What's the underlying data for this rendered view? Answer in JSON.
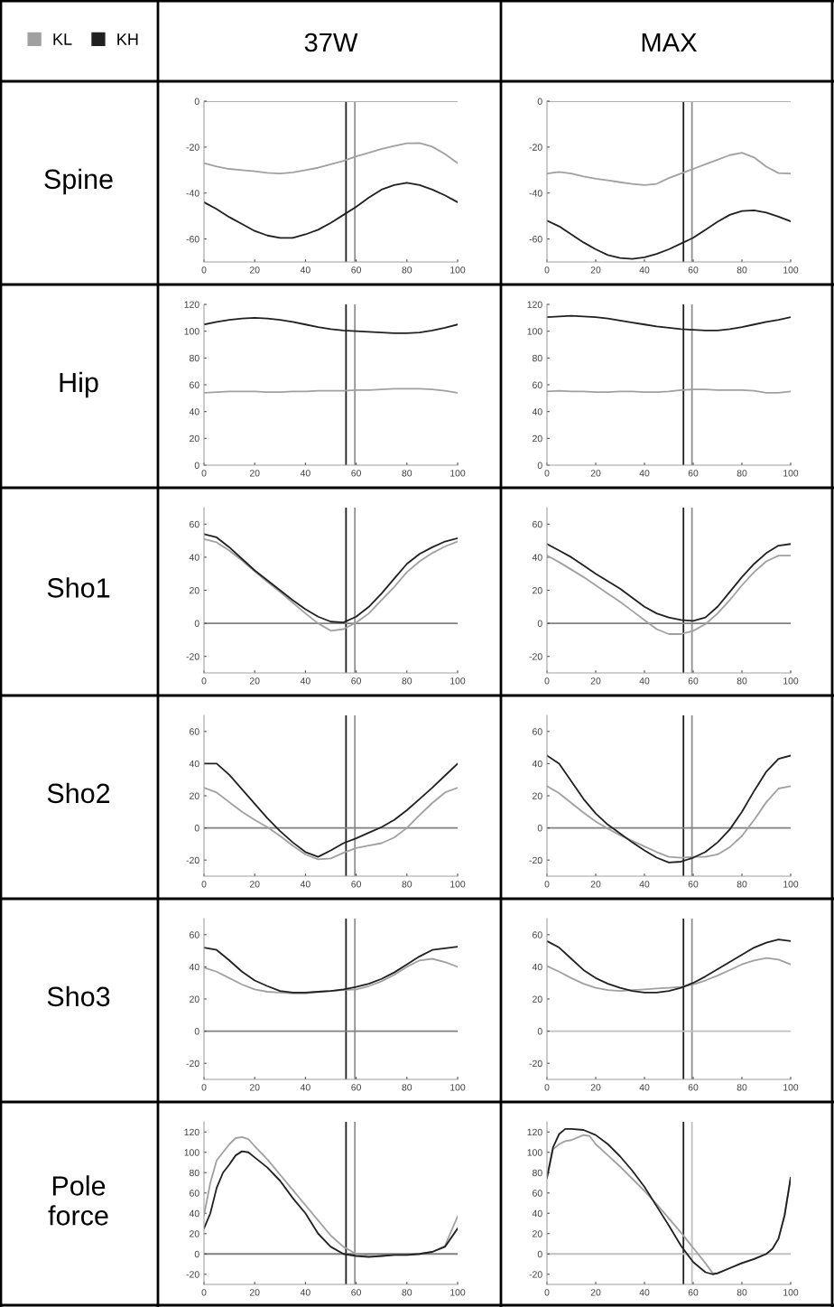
{
  "chart_data": [
    {
      "type": "line",
      "title": "37W",
      "ylabel": "Spine",
      "legend": "top left",
      "xlim": [
        0,
        100
      ],
      "xticks": [
        0,
        20,
        40,
        60,
        80,
        100
      ],
      "ylim": [
        -70,
        0
      ],
      "yticks": [
        -60,
        -40,
        -20,
        0
      ],
      "x": [
        0,
        5,
        10,
        15,
        20,
        25,
        30,
        35,
        40,
        45,
        50,
        55,
        60,
        65,
        70,
        75,
        80,
        85,
        90,
        95,
        100
      ],
      "series": [
        {
          "name": "KL",
          "color": "#a0a0a0",
          "values": [
            -27,
            -28.5,
            -29.5,
            -30,
            -30.5,
            -31.2,
            -31.5,
            -31,
            -30,
            -29,
            -27.5,
            -26,
            -24,
            -22.5,
            -20.8,
            -19.5,
            -18.3,
            -18.2,
            -19.8,
            -23,
            -27
          ]
        },
        {
          "name": "KH",
          "color": "#202020",
          "values": [
            -44,
            -47,
            -50.5,
            -53.5,
            -56.5,
            -58.5,
            -59.5,
            -59.5,
            -58,
            -56,
            -53,
            -49.5,
            -46,
            -42,
            -38.5,
            -36.5,
            -35.5,
            -36.5,
            -38.5,
            -41,
            -44
          ]
        }
      ],
      "ref_lines": [
        {
          "axis": "x",
          "value": 56,
          "color": "#202020"
        },
        {
          "axis": "x",
          "value": 59.5,
          "color": "#909090"
        },
        {
          "axis": "y",
          "value": 0,
          "color": "#b0b0b0"
        }
      ]
    },
    {
      "type": "line",
      "title": "MAX",
      "xlim": [
        0,
        100
      ],
      "xticks": [
        0,
        20,
        40,
        60,
        80,
        100
      ],
      "ylim": [
        -70,
        0
      ],
      "yticks": [
        -60,
        -40,
        -20,
        0
      ],
      "x": [
        0,
        5,
        10,
        15,
        20,
        25,
        30,
        35,
        40,
        45,
        50,
        55,
        60,
        65,
        70,
        75,
        80,
        85,
        90,
        95,
        100
      ],
      "series": [
        {
          "color": "#a0a0a0",
          "values": [
            -31.5,
            -30.8,
            -31.5,
            -32.8,
            -33.8,
            -34.5,
            -35.3,
            -36,
            -36.5,
            -36,
            -33.5,
            -31.5,
            -29.5,
            -27.5,
            -25.5,
            -23.5,
            -22.5,
            -24.5,
            -28.5,
            -31.3,
            -31.5
          ]
        },
        {
          "color": "#202020",
          "values": [
            -52,
            -54.5,
            -58,
            -61.5,
            -64.5,
            -67,
            -68.3,
            -68.7,
            -68,
            -66.5,
            -64.5,
            -62,
            -59.5,
            -56,
            -52.5,
            -49.5,
            -47.8,
            -47.5,
            -48.5,
            -50.3,
            -52.3
          ]
        }
      ],
      "ref_lines": [
        {
          "axis": "x",
          "value": 56,
          "color": "#202020"
        },
        {
          "axis": "x",
          "value": 59.5,
          "color": "#909090"
        },
        {
          "axis": "y",
          "value": 0,
          "color": "#b0b0b0"
        }
      ]
    },
    {
      "type": "line",
      "ylabel": "Hip",
      "xlim": [
        0,
        100
      ],
      "xticks": [
        0,
        20,
        40,
        60,
        80,
        100
      ],
      "ylim": [
        0,
        120
      ],
      "yticks": [
        0,
        20,
        40,
        60,
        80,
        100,
        120
      ],
      "x": [
        0,
        5,
        10,
        15,
        20,
        25,
        30,
        35,
        40,
        45,
        50,
        55,
        60,
        65,
        70,
        75,
        80,
        85,
        90,
        95,
        100
      ],
      "series": [
        {
          "color": "#a0a0a0",
          "values": [
            54,
            54.5,
            55,
            55,
            55,
            54.5,
            54.5,
            55,
            55,
            55.5,
            55.5,
            55.5,
            56,
            56,
            56.5,
            57,
            57,
            57,
            56.5,
            55.5,
            54
          ]
        },
        {
          "color": "#202020",
          "values": [
            105,
            107,
            108.5,
            109.5,
            110,
            109.5,
            108.5,
            107,
            105,
            103,
            101.5,
            100.5,
            100,
            99.5,
            99,
            98.5,
            98.5,
            99,
            100.5,
            102.5,
            105
          ]
        }
      ],
      "ref_lines": [
        {
          "axis": "x",
          "value": 56,
          "color": "#202020"
        },
        {
          "axis": "x",
          "value": 59.5,
          "color": "#909090"
        }
      ]
    },
    {
      "type": "line",
      "xlim": [
        0,
        100
      ],
      "xticks": [
        0,
        20,
        40,
        60,
        80,
        100
      ],
      "ylim": [
        0,
        120
      ],
      "yticks": [
        0,
        20,
        40,
        60,
        80,
        100,
        120
      ],
      "x": [
        0,
        5,
        10,
        15,
        20,
        25,
        30,
        35,
        40,
        45,
        50,
        55,
        60,
        65,
        70,
        75,
        80,
        85,
        90,
        95,
        100
      ],
      "series": [
        {
          "color": "#a0a0a0",
          "values": [
            55,
            55.5,
            55,
            55,
            54.5,
            54.5,
            55,
            55,
            54.5,
            54.5,
            55,
            56,
            56.5,
            56.5,
            56,
            56,
            56,
            55.5,
            54,
            54,
            55
          ]
        },
        {
          "color": "#202020",
          "values": [
            110.5,
            111,
            111.5,
            111,
            110.5,
            109.5,
            108,
            106.5,
            105,
            103.5,
            102.5,
            101.5,
            101,
            100.5,
            100.5,
            101.5,
            103,
            105,
            107,
            108.5,
            110.5
          ]
        }
      ],
      "ref_lines": [
        {
          "axis": "x",
          "value": 56,
          "color": "#202020"
        },
        {
          "axis": "x",
          "value": 59.5,
          "color": "#909090"
        }
      ]
    },
    {
      "type": "line",
      "ylabel": "Sho1",
      "xlim": [
        0,
        100
      ],
      "xticks": [
        0,
        20,
        40,
        60,
        80,
        100
      ],
      "ylim": [
        -30,
        70
      ],
      "yticks": [
        -20,
        0,
        20,
        40,
        60
      ],
      "x": [
        0,
        5,
        10,
        15,
        20,
        25,
        30,
        35,
        40,
        45,
        50,
        55,
        60,
        65,
        70,
        75,
        80,
        85,
        90,
        95,
        100
      ],
      "series": [
        {
          "color": "#a0a0a0",
          "values": [
            51,
            49,
            44,
            38,
            31.5,
            25,
            19,
            12.5,
            6,
            0,
            -4.5,
            -3.5,
            0.5,
            6,
            14,
            22,
            31,
            37.5,
            42.5,
            46.5,
            49.5
          ]
        },
        {
          "color": "#202020",
          "values": [
            54,
            52,
            46,
            39,
            32,
            26,
            20,
            14,
            8.5,
            4,
            1,
            0.5,
            4,
            10,
            18,
            27,
            36,
            42,
            46,
            49.5,
            51.5
          ]
        }
      ],
      "ref_lines": [
        {
          "axis": "x",
          "value": 56,
          "color": "#202020"
        },
        {
          "axis": "x",
          "value": 59.5,
          "color": "#909090"
        },
        {
          "axis": "y",
          "value": 0,
          "color": "#808080"
        }
      ]
    },
    {
      "type": "line",
      "xlim": [
        0,
        100
      ],
      "xticks": [
        0,
        20,
        40,
        60,
        80,
        100
      ],
      "ylim": [
        -30,
        70
      ],
      "yticks": [
        -20,
        0,
        20,
        40,
        60
      ],
      "x": [
        0,
        5,
        10,
        15,
        20,
        25,
        30,
        35,
        40,
        45,
        50,
        55,
        60,
        65,
        70,
        75,
        80,
        85,
        90,
        95,
        100
      ],
      "series": [
        {
          "color": "#a0a0a0",
          "values": [
            41,
            37,
            32.5,
            28,
            23,
            18,
            13,
            7.5,
            2,
            -3.5,
            -6.5,
            -6.5,
            -4.5,
            -0.5,
            6,
            14,
            23,
            31,
            37.5,
            41,
            41
          ]
        },
        {
          "color": "#202020",
          "values": [
            48,
            44,
            40,
            35,
            30,
            25.5,
            21,
            15.5,
            10,
            6,
            3.5,
            2,
            1.5,
            3.5,
            10,
            19,
            28,
            36,
            42.5,
            47,
            48
          ]
        }
      ],
      "ref_lines": [
        {
          "axis": "x",
          "value": 56,
          "color": "#202020"
        },
        {
          "axis": "x",
          "value": 59.5,
          "color": "#909090"
        },
        {
          "axis": "y",
          "value": 0,
          "color": "#808080"
        }
      ]
    },
    {
      "type": "line",
      "ylabel": "Sho2",
      "xlim": [
        0,
        100
      ],
      "xticks": [
        0,
        20,
        40,
        60,
        80,
        100
      ],
      "ylim": [
        -30,
        70
      ],
      "yticks": [
        -20,
        0,
        20,
        40,
        60
      ],
      "x": [
        0,
        5,
        10,
        15,
        20,
        25,
        30,
        35,
        40,
        45,
        50,
        55,
        60,
        65,
        70,
        75,
        80,
        85,
        90,
        95,
        100
      ],
      "series": [
        {
          "color": "#a0a0a0",
          "values": [
            25,
            22,
            16,
            10,
            5,
            0.5,
            -5,
            -11,
            -16.5,
            -19.5,
            -19,
            -15.5,
            -12.5,
            -11,
            -9.5,
            -6,
            0,
            8,
            15.5,
            22,
            25
          ]
        },
        {
          "color": "#202020",
          "values": [
            40,
            40,
            33,
            24,
            15,
            6,
            -2,
            -9,
            -15,
            -18,
            -14,
            -9.5,
            -6.5,
            -3,
            0.5,
            5,
            11,
            18,
            25,
            32.5,
            40
          ]
        }
      ],
      "ref_lines": [
        {
          "axis": "x",
          "value": 56,
          "color": "#202020"
        },
        {
          "axis": "x",
          "value": 59.5,
          "color": "#909090"
        },
        {
          "axis": "y",
          "value": 0,
          "color": "#808080"
        }
      ]
    },
    {
      "type": "line",
      "xlim": [
        0,
        100
      ],
      "xticks": [
        0,
        20,
        40,
        60,
        80,
        100
      ],
      "ylim": [
        -30,
        70
      ],
      "yticks": [
        -20,
        0,
        20,
        40,
        60
      ],
      "x": [
        0,
        5,
        10,
        15,
        20,
        25,
        30,
        35,
        40,
        45,
        50,
        55,
        60,
        65,
        70,
        75,
        80,
        85,
        90,
        95,
        100
      ],
      "series": [
        {
          "color": "#a0a0a0",
          "values": [
            26,
            21.5,
            15.5,
            9.5,
            4,
            -0.5,
            -4.5,
            -8,
            -11.5,
            -15,
            -18,
            -18.5,
            -18,
            -18,
            -16.5,
            -12,
            -5,
            5,
            16,
            24.5,
            26
          ]
        },
        {
          "color": "#202020",
          "values": [
            45,
            40,
            29,
            18,
            9,
            2,
            -3.5,
            -9,
            -14,
            -18.5,
            -21.5,
            -21,
            -18.5,
            -15,
            -9,
            -1,
            10,
            23,
            35,
            43,
            45
          ]
        }
      ],
      "ref_lines": [
        {
          "axis": "x",
          "value": 56,
          "color": "#202020"
        },
        {
          "axis": "x",
          "value": 59.5,
          "color": "#909090"
        },
        {
          "axis": "y",
          "value": 0,
          "color": "#808080"
        }
      ]
    },
    {
      "type": "line",
      "ylabel": "Sho3",
      "xlim": [
        0,
        100
      ],
      "xticks": [
        0,
        20,
        40,
        60,
        80,
        100
      ],
      "ylim": [
        -30,
        70
      ],
      "yticks": [
        -20,
        0,
        20,
        40,
        60
      ],
      "x": [
        0,
        5,
        10,
        15,
        20,
        25,
        30,
        35,
        40,
        45,
        50,
        55,
        60,
        65,
        70,
        75,
        80,
        85,
        90,
        95,
        100
      ],
      "series": [
        {
          "color": "#a0a0a0",
          "values": [
            39.5,
            37,
            33,
            29,
            26,
            24.5,
            24,
            23.5,
            23.5,
            24.5,
            25,
            25.5,
            26,
            28,
            31,
            35,
            40,
            44,
            45,
            43,
            40
          ]
        },
        {
          "color": "#202020",
          "values": [
            52,
            50.5,
            44,
            37,
            31.5,
            28,
            25,
            24,
            24,
            24.5,
            25,
            26,
            27.5,
            29.5,
            32.5,
            36.5,
            41.5,
            46.5,
            50.5,
            51.5,
            52.5
          ]
        }
      ],
      "ref_lines": [
        {
          "axis": "x",
          "value": 56,
          "color": "#202020"
        },
        {
          "axis": "x",
          "value": 59.5,
          "color": "#909090"
        },
        {
          "axis": "y",
          "value": 0,
          "color": "#808080"
        }
      ]
    },
    {
      "type": "line",
      "xlim": [
        0,
        100
      ],
      "xticks": [
        0,
        20,
        40,
        60,
        80,
        100
      ],
      "ylim": [
        -30,
        70
      ],
      "yticks": [
        -20,
        0,
        20,
        40,
        60
      ],
      "x": [
        0,
        5,
        10,
        15,
        20,
        25,
        30,
        35,
        40,
        45,
        50,
        55,
        60,
        65,
        70,
        75,
        80,
        85,
        90,
        95,
        100
      ],
      "series": [
        {
          "color": "#a0a0a0",
          "values": [
            40.5,
            37,
            33,
            29.5,
            27,
            25.5,
            25,
            25.5,
            26,
            26.5,
            27,
            27.5,
            29,
            31.5,
            34.5,
            38,
            41.5,
            44,
            45.5,
            44.5,
            41.5
          ]
        },
        {
          "color": "#202020",
          "values": [
            56,
            52,
            45,
            38,
            33,
            29.5,
            27,
            25,
            24,
            24,
            25,
            27,
            30,
            34,
            38.5,
            43,
            47.5,
            52,
            55,
            57,
            56
          ]
        }
      ],
      "ref_lines": [
        {
          "axis": "x",
          "value": 56,
          "color": "#202020"
        },
        {
          "axis": "x",
          "value": 59.5,
          "color": "#909090"
        },
        {
          "axis": "y",
          "value": 0,
          "color": "#c0c0c0"
        }
      ]
    },
    {
      "type": "line",
      "ylabel": "Pole\nforce",
      "xlim": [
        0,
        100
      ],
      "xticks": [
        0,
        20,
        40,
        60,
        80,
        100
      ],
      "ylim": [
        -30,
        130
      ],
      "yticks": [
        -20,
        0,
        20,
        40,
        60,
        80,
        100,
        120
      ],
      "series": [
        {
          "color": "#a0a0a0",
          "x": [
            0,
            2.5,
            5,
            7.5,
            10,
            12.5,
            15,
            17.5,
            20,
            25,
            30,
            35,
            40,
            45,
            50,
            55,
            60,
            65,
            70,
            75,
            80,
            85,
            90,
            95,
            100
          ],
          "values": [
            38,
            70,
            92,
            100,
            108,
            114,
            115,
            113,
            106,
            93,
            78,
            63,
            48,
            33,
            18,
            7,
            0,
            -2,
            -2,
            -1,
            -1,
            0,
            2,
            8,
            37
          ]
        },
        {
          "color": "#202020",
          "x": [
            0,
            2.5,
            5,
            7.5,
            10,
            12.5,
            15,
            17.5,
            20,
            25,
            30,
            35,
            40,
            45,
            50,
            55,
            60,
            65,
            70,
            75,
            80,
            85,
            90,
            95,
            100
          ],
          "values": [
            25,
            40,
            65,
            80,
            88,
            97,
            101,
            100,
            95,
            85,
            72,
            55,
            40,
            20,
            7,
            0,
            -2,
            -3,
            -2,
            -1,
            -1,
            0,
            2,
            7,
            25
          ]
        }
      ],
      "ref_lines": [
        {
          "axis": "x",
          "value": 56,
          "color": "#202020"
        },
        {
          "axis": "x",
          "value": 59.5,
          "color": "#909090"
        },
        {
          "axis": "y",
          "value": 0,
          "color": "#808080"
        }
      ]
    },
    {
      "type": "line",
      "xlim": [
        0,
        100
      ],
      "xticks": [
        0,
        20,
        40,
        60,
        80,
        100
      ],
      "ylim": [
        -30,
        130
      ],
      "yticks": [
        -20,
        0,
        20,
        40,
        60,
        80,
        100,
        120
      ],
      "series": [
        {
          "color": "#a0a0a0",
          "x": [
            0,
            2.5,
            5,
            7.5,
            10,
            15,
            17.5,
            20,
            25,
            30,
            35,
            40,
            45,
            50,
            55,
            60,
            65,
            68,
            70,
            75,
            80,
            85,
            90,
            92.5,
            95,
            97.5,
            100
          ],
          "values": [
            75,
            103,
            108,
            111,
            112,
            117,
            116,
            108,
            97,
            86,
            74,
            62,
            49,
            35,
            21,
            6,
            -9,
            -19,
            -19,
            -14,
            -9,
            -5,
            0,
            5,
            15,
            38,
            75
          ]
        },
        {
          "color": "#202020",
          "x": [
            0,
            2.5,
            5,
            7.5,
            10,
            15,
            20,
            25,
            30,
            35,
            40,
            45,
            50,
            55,
            60,
            65,
            68,
            70,
            75,
            80,
            85,
            90,
            92.5,
            95,
            97.5,
            100
          ],
          "values": [
            75,
            105,
            118,
            123,
            123,
            122,
            117,
            108,
            96,
            82,
            66,
            47,
            28,
            8,
            -8,
            -18,
            -20,
            -19,
            -14,
            -9,
            -5,
            0,
            5,
            15,
            38,
            75
          ]
        }
      ],
      "ref_lines": [
        {
          "axis": "x",
          "value": 56,
          "color": "#202020"
        },
        {
          "axis": "x",
          "value": 59.5,
          "color": "#c0c0c0"
        },
        {
          "axis": "y",
          "value": 0,
          "color": "#c0c0c0"
        }
      ]
    }
  ]
}
